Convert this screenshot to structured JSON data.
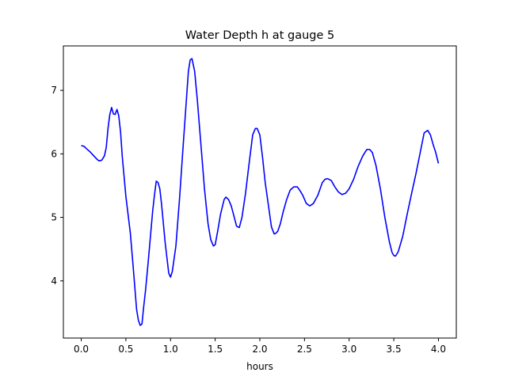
{
  "chart_data": {
    "type": "line",
    "title": "Water Depth h at gauge 5",
    "xlabel": "hours",
    "ylabel": "",
    "xlim": [
      -0.2,
      4.2
    ],
    "ylim": [
      3.1,
      7.7
    ],
    "xticks": [
      0.0,
      0.5,
      1.0,
      1.5,
      2.0,
      2.5,
      3.0,
      3.5,
      4.0
    ],
    "xtick_labels": [
      "0.0",
      "0.5",
      "1.0",
      "1.5",
      "2.0",
      "2.5",
      "3.0",
      "3.5",
      "4.0"
    ],
    "yticks": [
      4,
      5,
      6,
      7
    ],
    "ytick_labels": [
      "4",
      "5",
      "6",
      "7"
    ],
    "grid": false,
    "series": [
      {
        "color": "#0000ff",
        "x": [
          0.0,
          0.03,
          0.06,
          0.1,
          0.14,
          0.18,
          0.2,
          0.23,
          0.26,
          0.28,
          0.3,
          0.32,
          0.34,
          0.36,
          0.38,
          0.4,
          0.42,
          0.44,
          0.46,
          0.5,
          0.55,
          0.58,
          0.6,
          0.62,
          0.64,
          0.66,
          0.68,
          0.7,
          0.72,
          0.75,
          0.78,
          0.8,
          0.82,
          0.84,
          0.86,
          0.88,
          0.9,
          0.94,
          0.98,
          1.0,
          1.02,
          1.06,
          1.1,
          1.14,
          1.18,
          1.2,
          1.22,
          1.24,
          1.27,
          1.3,
          1.34,
          1.38,
          1.42,
          1.45,
          1.48,
          1.5,
          1.53,
          1.56,
          1.6,
          1.62,
          1.65,
          1.68,
          1.71,
          1.74,
          1.77,
          1.8,
          1.84,
          1.88,
          1.92,
          1.95,
          1.97,
          2.0,
          2.03,
          2.06,
          2.1,
          2.13,
          2.16,
          2.18,
          2.2,
          2.23,
          2.26,
          2.3,
          2.34,
          2.38,
          2.42,
          2.45,
          2.48,
          2.52,
          2.56,
          2.6,
          2.65,
          2.7,
          2.73,
          2.76,
          2.8,
          2.84,
          2.88,
          2.92,
          2.96,
          3.0,
          3.05,
          3.1,
          3.15,
          3.18,
          3.2,
          3.23,
          3.26,
          3.3,
          3.35,
          3.4,
          3.45,
          3.48,
          3.5,
          3.52,
          3.55,
          3.6,
          3.65,
          3.7,
          3.75,
          3.8,
          3.84,
          3.88,
          3.91,
          3.94,
          3.97,
          4.0
        ],
        "y": [
          6.13,
          6.12,
          6.08,
          6.03,
          5.97,
          5.91,
          5.89,
          5.9,
          5.97,
          6.1,
          6.4,
          6.62,
          6.73,
          6.63,
          6.62,
          6.7,
          6.6,
          6.35,
          5.95,
          5.33,
          4.75,
          4.25,
          3.9,
          3.55,
          3.38,
          3.3,
          3.32,
          3.6,
          3.85,
          4.3,
          4.78,
          5.1,
          5.35,
          5.57,
          5.55,
          5.45,
          5.2,
          4.6,
          4.12,
          4.06,
          4.15,
          4.55,
          5.28,
          6.1,
          6.9,
          7.3,
          7.48,
          7.5,
          7.3,
          6.85,
          6.15,
          5.45,
          4.9,
          4.65,
          4.55,
          4.57,
          4.8,
          5.05,
          5.28,
          5.32,
          5.28,
          5.18,
          5.02,
          4.86,
          4.84,
          5.0,
          5.38,
          5.85,
          6.3,
          6.4,
          6.4,
          6.3,
          5.95,
          5.55,
          5.15,
          4.85,
          4.74,
          4.75,
          4.78,
          4.9,
          5.08,
          5.28,
          5.43,
          5.48,
          5.48,
          5.42,
          5.35,
          5.22,
          5.18,
          5.22,
          5.35,
          5.55,
          5.6,
          5.61,
          5.58,
          5.48,
          5.4,
          5.36,
          5.38,
          5.45,
          5.6,
          5.8,
          5.96,
          6.03,
          6.07,
          6.07,
          6.02,
          5.82,
          5.45,
          5.0,
          4.62,
          4.45,
          4.4,
          4.39,
          4.46,
          4.7,
          5.05,
          5.38,
          5.7,
          6.05,
          6.33,
          6.37,
          6.3,
          6.15,
          6.02,
          5.85
        ]
      }
    ]
  }
}
